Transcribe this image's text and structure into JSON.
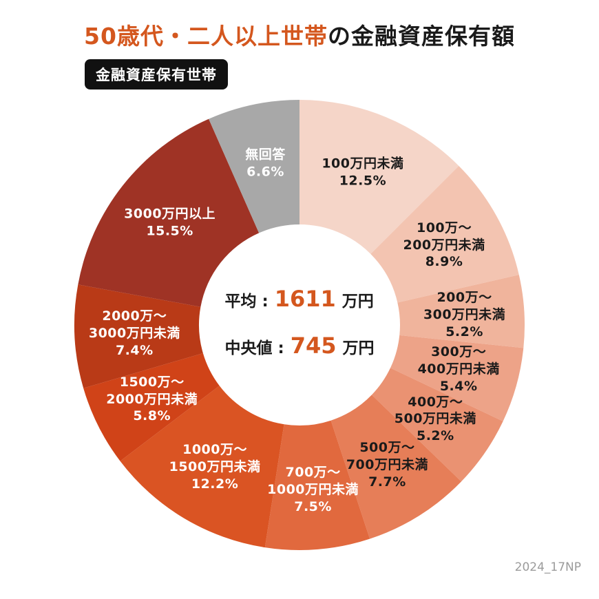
{
  "title": {
    "highlight": "50歳代・二人以上世帯",
    "rest": "の金融資産保有額"
  },
  "badge": {
    "label": "金融資産保有世帯"
  },
  "center": {
    "average": {
      "label": "平均 :",
      "value": "1611",
      "unit": "万円"
    },
    "median": {
      "label": "中央値 :",
      "value": "745",
      "unit": "万円"
    }
  },
  "footer": {
    "note": "2024_17NP"
  },
  "colors": {
    "accent": "#d4571e",
    "badge_bg": "#111111",
    "no_answer_gray": "#a8a8a8"
  },
  "chart_data": {
    "type": "pie",
    "subtype": "donut",
    "title": "50歳代・二人以上世帯の金融資産保有額（金融資産保有世帯）",
    "unit": "%",
    "start_angle": "top",
    "direction": "clockwise",
    "segments": [
      {
        "label": "100万円未満",
        "value": 12.5,
        "color": "#f5d5c8",
        "text_color": "#1a1a1a"
      },
      {
        "label": "100万〜\n200万円未満",
        "value": 8.9,
        "color": "#f3c4b1",
        "text_color": "#1a1a1a"
      },
      {
        "label": "200万〜\n300万円未満",
        "value": 5.2,
        "color": "#f0b49c",
        "text_color": "#1a1a1a"
      },
      {
        "label": "300万〜\n400万円未満",
        "value": 5.4,
        "color": "#eda388",
        "text_color": "#1a1a1a"
      },
      {
        "label": "400万〜\n500万円未満",
        "value": 5.2,
        "color": "#ea9272",
        "text_color": "#1a1a1a"
      },
      {
        "label": "500万〜\n700万円未満",
        "value": 7.7,
        "color": "#e67e58",
        "text_color": "#1a1a1a"
      },
      {
        "label": "700万〜\n1000万円未満",
        "value": 7.5,
        "color": "#e1693e",
        "text_color": "#ffffff"
      },
      {
        "label": "1000万〜\n1500万円未満",
        "value": 12.2,
        "color": "#da5423",
        "text_color": "#ffffff"
      },
      {
        "label": "1500万〜\n2000万円未満",
        "value": 5.8,
        "color": "#d04318",
        "text_color": "#ffffff"
      },
      {
        "label": "2000万〜\n3000万円未満",
        "value": 7.4,
        "color": "#b93a17",
        "text_color": "#ffffff"
      },
      {
        "label": "3000万円以上",
        "value": 15.5,
        "color": "#9f3325",
        "text_color": "#ffffff"
      },
      {
        "label": "無回答",
        "value": 6.6,
        "color": "#a8a8a8",
        "text_color": "#ffffff"
      }
    ]
  }
}
